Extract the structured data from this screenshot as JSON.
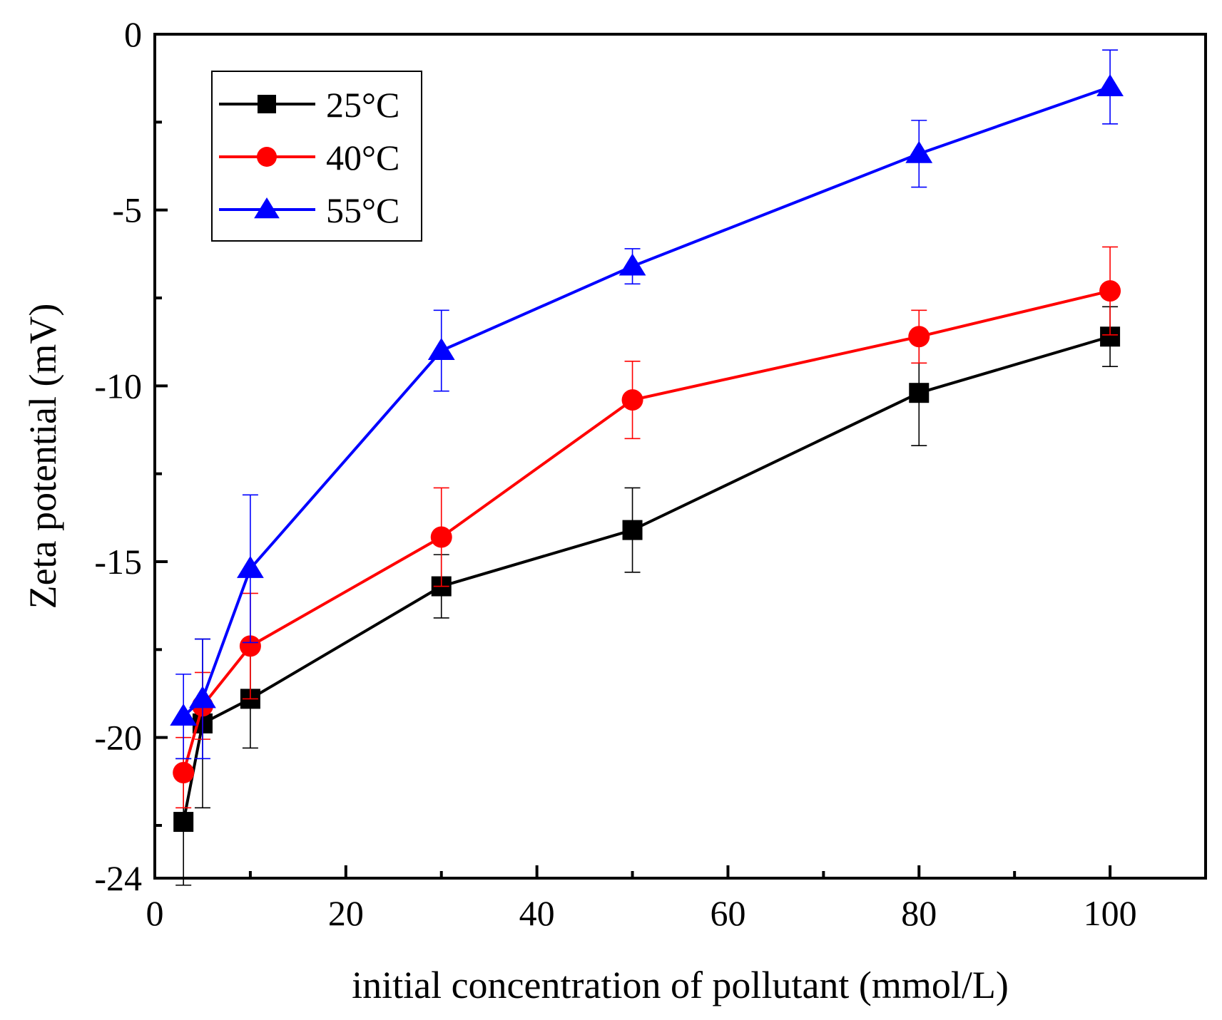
{
  "chart_data": {
    "type": "line",
    "title": "",
    "xlabel": "initial concentration of pollutant (mmol/L)",
    "ylabel": "Zeta potential (mV)",
    "xlim": [
      0,
      110
    ],
    "ylim": [
      -24,
      0
    ],
    "x_ticks": [
      0,
      20,
      40,
      60,
      80,
      100
    ],
    "x_minor_ticks": [
      10,
      30,
      50,
      70,
      90,
      110
    ],
    "y_ticks": [
      -24,
      -20,
      -15,
      -10,
      -5,
      0
    ],
    "y_tick_labels": [
      "-24",
      "-20",
      "-15",
      "-10",
      "-5",
      "0"
    ],
    "y_minor_ticks": [
      -22.5,
      -17.5,
      -12.5,
      -7.5,
      -2.5
    ],
    "legend_position": "top-left",
    "series": [
      {
        "name": "25°C",
        "color": "#000000",
        "marker": "square",
        "x": [
          3,
          5,
          10,
          30,
          50,
          80,
          100
        ],
        "y": [
          -22.4,
          -19.6,
          -18.9,
          -15.7,
          -14.1,
          -10.2,
          -8.6
        ],
        "error": [
          1.8,
          2.4,
          1.4,
          0.9,
          1.2,
          1.5,
          0.85
        ]
      },
      {
        "name": "40°C",
        "color": "#ff0000",
        "marker": "circle",
        "x": [
          3,
          5,
          10,
          30,
          50,
          80,
          100
        ],
        "y": [
          -21.0,
          -19.1,
          -17.4,
          -14.3,
          -10.4,
          -8.6,
          -7.3
        ],
        "error": [
          1.0,
          0.95,
          1.5,
          1.4,
          1.1,
          0.75,
          1.25
        ]
      },
      {
        "name": "55°C",
        "color": "#0000ff",
        "marker": "triangle",
        "x": [
          3,
          5,
          10,
          30,
          50,
          80,
          100
        ],
        "y": [
          -19.4,
          -18.9,
          -15.2,
          -9.0,
          -6.6,
          -3.4,
          -1.5
        ],
        "error": [
          1.2,
          1.7,
          2.1,
          1.15,
          0.5,
          0.95,
          1.05
        ]
      }
    ]
  }
}
